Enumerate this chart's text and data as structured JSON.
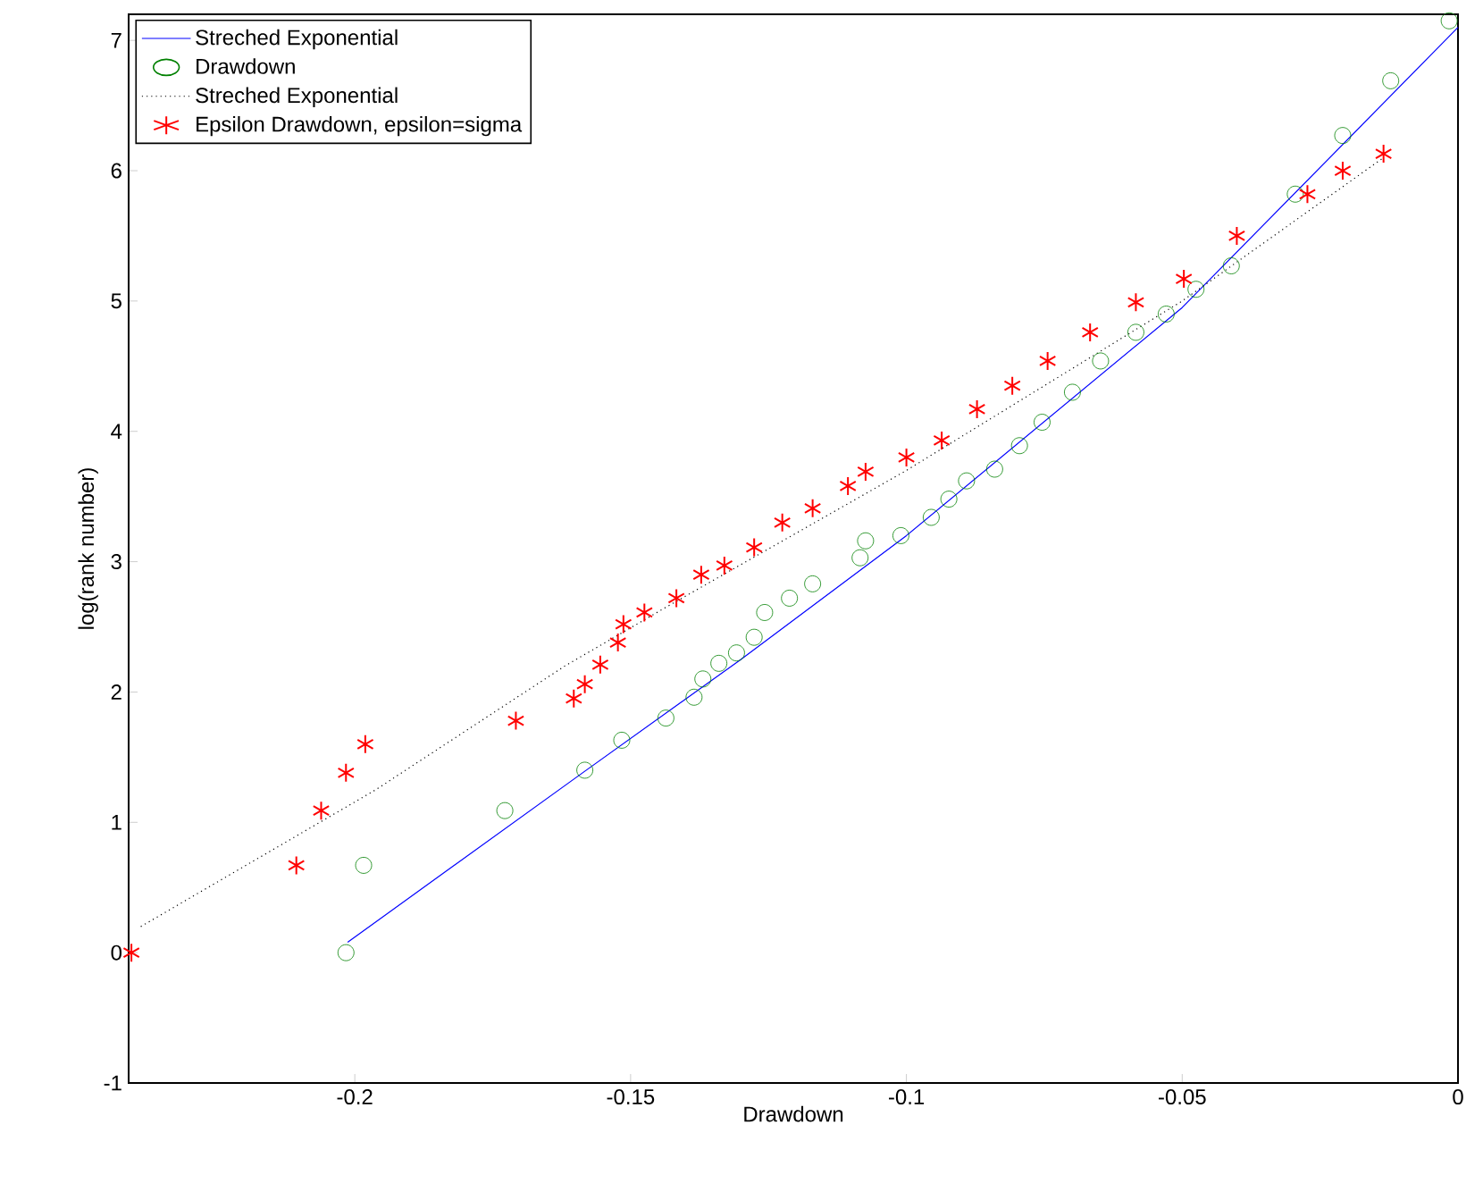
{
  "chart_data": {
    "type": "scatter",
    "xlabel": "Drawdown",
    "ylabel": "log(rank number)",
    "xlim": [
      -0.241,
      0
    ],
    "ylim": [
      -1,
      7.2
    ],
    "xticks": [
      -0.2,
      -0.15,
      -0.1,
      -0.05,
      0
    ],
    "yticks": [
      -1,
      0,
      1,
      2,
      3,
      4,
      5,
      6,
      7
    ],
    "legend": "top left",
    "grid": false,
    "series": [
      {
        "name": "Streched Exponential",
        "type": "line",
        "color": "#0000ff",
        "marker": "none",
        "line_style": "solid",
        "x": [
          -0.2013,
          -0.1587,
          -0.13,
          -0.1,
          -0.05,
          0
        ],
        "values": [
          0.08,
          1.38,
          2.25,
          3.2,
          4.95,
          7.1
        ]
      },
      {
        "name": "Drawdown",
        "color": "#008000",
        "marker": "circle",
        "x": [
          -0.2016,
          -0.1984,
          -0.1728,
          -0.1583,
          -0.1516,
          -0.1436,
          -0.1385,
          -0.1369,
          -0.134,
          -0.1308,
          -0.1276,
          -0.1257,
          -0.1212,
          -0.117,
          -0.1084,
          -0.1074,
          -0.101,
          -0.0955,
          -0.0923,
          -0.0891,
          -0.084,
          -0.0795,
          -0.0754,
          -0.0699,
          -0.0648,
          -0.0584,
          -0.0529,
          -0.0475,
          -0.0411,
          -0.0295,
          -0.0209,
          -0.0122,
          -0.0016
        ],
        "values": [
          0,
          0.67,
          1.09,
          1.4,
          1.63,
          1.8,
          1.96,
          2.1,
          2.22,
          2.3,
          2.42,
          2.61,
          2.72,
          2.83,
          3.03,
          3.16,
          3.2,
          3.34,
          3.48,
          3.62,
          3.71,
          3.89,
          4.07,
          4.3,
          4.54,
          4.76,
          4.9,
          5.09,
          5.27,
          5.82,
          6.27,
          6.69,
          7.15
        ]
      },
      {
        "name": "Streched Exponential",
        "type": "line",
        "color": "#000000",
        "marker": "none",
        "line_style": "dotted",
        "x": [
          -0.2388,
          -0.1962,
          -0.1619,
          -0.1436,
          -0.1,
          -0.05,
          -0.0135
        ],
        "values": [
          0.2,
          1.25,
          2.2,
          2.65,
          3.7,
          5.0,
          6.1
        ]
      },
      {
        "name": "Epsilon Drawdown, epsilon=sigma",
        "color": "#ff0000",
        "marker": "cross",
        "x": [
          -0.2405,
          -0.2106,
          -0.2061,
          -0.2016,
          -0.1981,
          -0.1708,
          -0.1603,
          -0.1583,
          -0.1555,
          -0.1523,
          -0.1513,
          -0.1475,
          -0.1417,
          -0.1372,
          -0.133,
          -0.1276,
          -0.1225,
          -0.117,
          -0.1106,
          -0.1074,
          -0.1,
          -0.0936,
          -0.0872,
          -0.0808,
          -0.0744,
          -0.0667,
          -0.0584,
          -0.0497,
          -0.0401,
          -0.0273,
          -0.0209,
          -0.0135
        ],
        "values": [
          0,
          0.67,
          1.09,
          1.38,
          1.6,
          1.78,
          1.95,
          2.06,
          2.21,
          2.38,
          2.52,
          2.61,
          2.72,
          2.9,
          2.97,
          3.11,
          3.3,
          3.41,
          3.58,
          3.69,
          3.8,
          3.93,
          4.17,
          4.35,
          4.54,
          4.76,
          4.99,
          5.17,
          5.5,
          5.82,
          6.0,
          6.13
        ]
      }
    ]
  }
}
